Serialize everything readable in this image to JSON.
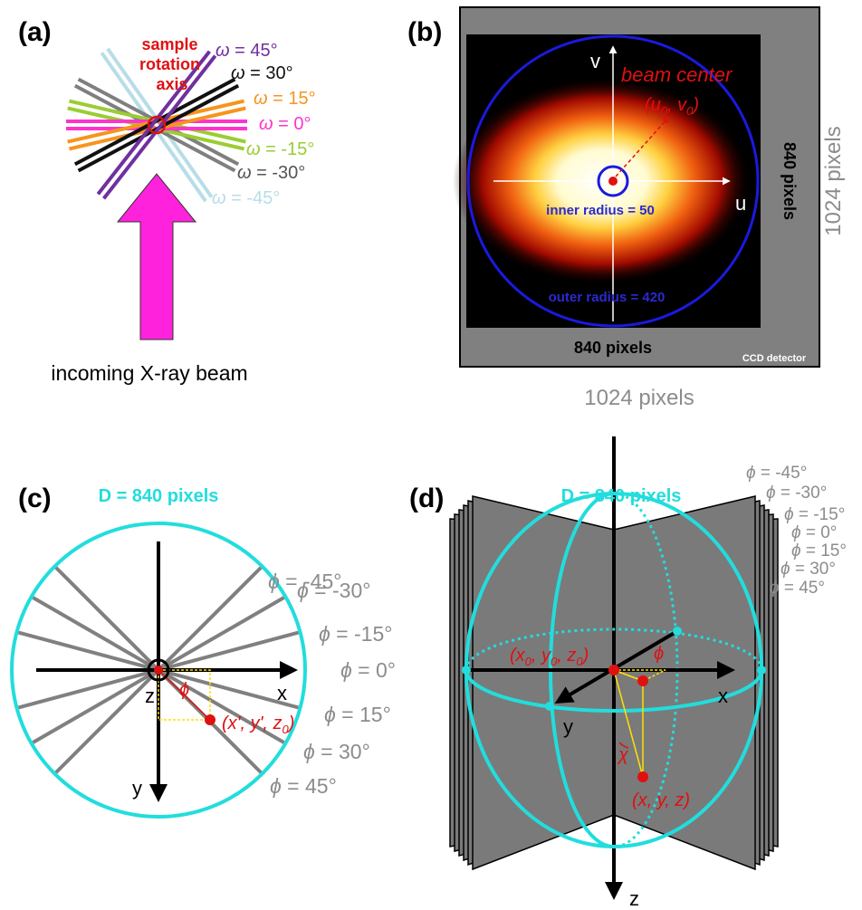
{
  "panel_a": {
    "label": "(a)",
    "axis_label": [
      "sample",
      "rotation",
      "axis"
    ],
    "omega_labels": [
      {
        "symbol": "ω",
        "text": " = 45°"
      },
      {
        "symbol": "ω",
        "text": " = 30°"
      },
      {
        "symbol": "ω",
        "text": " = 15°"
      },
      {
        "symbol": "ω",
        "text": " = 0°"
      },
      {
        "symbol": "ω",
        "text": " = -15°"
      },
      {
        "symbol": "ω",
        "text": " = -30°"
      },
      {
        "symbol": "ω",
        "text": " = -45°"
      }
    ],
    "beam_label": "incoming X-ray beam"
  },
  "panel_b": {
    "label": "(b)",
    "v_label": "v",
    "u_label": "u",
    "beam_center": "beam center",
    "beam_center_coords": [
      "(u",
      "0",
      ", v",
      "0",
      ")"
    ],
    "inner_radius": "inner radius = 50",
    "outer_radius": "outer radius = 420",
    "inner_width": "840 pixels",
    "inner_height": "840 pixels",
    "outer_height": "1024 pixels",
    "outer_width": "1024 pixels",
    "detector": "CCD detector"
  },
  "panel_c": {
    "label": "(c)",
    "diameter": "D = 840 pixels",
    "phi_labels": [
      {
        "symbol": "ϕ",
        "text": " = -45°"
      },
      {
        "symbol": "ϕ",
        "text": " = -30°"
      },
      {
        "symbol": "ϕ",
        "text": " = -15°"
      },
      {
        "symbol": "ϕ",
        "text": " = 0°"
      },
      {
        "symbol": "ϕ",
        "text": " = 15°"
      },
      {
        "symbol": "ϕ",
        "text": " = 30°"
      },
      {
        "symbol": "ϕ",
        "text": " = 45°"
      }
    ],
    "z_label": "z",
    "x_label": "x",
    "y_label": "y",
    "phi": "ϕ",
    "point": [
      "(x', y', z",
      "0",
      ")"
    ]
  },
  "panel_d": {
    "label": "(d)",
    "diameter": "D = 840 pixels",
    "phi_labels": [
      {
        "symbol": "ϕ",
        "text": " = -45°"
      },
      {
        "symbol": "ϕ",
        "text": " = -30°"
      },
      {
        "symbol": "ϕ",
        "text": " = -15°"
      },
      {
        "symbol": "ϕ",
        "text": " = 0°"
      },
      {
        "symbol": "ϕ",
        "text": " = 15°"
      },
      {
        "symbol": "ϕ",
        "text": " = 30°"
      },
      {
        "symbol": "ϕ",
        "text": " = 45°"
      }
    ],
    "origin": [
      "(x",
      "0",
      ", y",
      "0",
      ", z",
      "0",
      ")"
    ],
    "phi": "ϕ",
    "x_label": "x",
    "y_label": "y",
    "z_label": "z",
    "chi": "χ",
    "point": "(x, y, z)"
  }
}
